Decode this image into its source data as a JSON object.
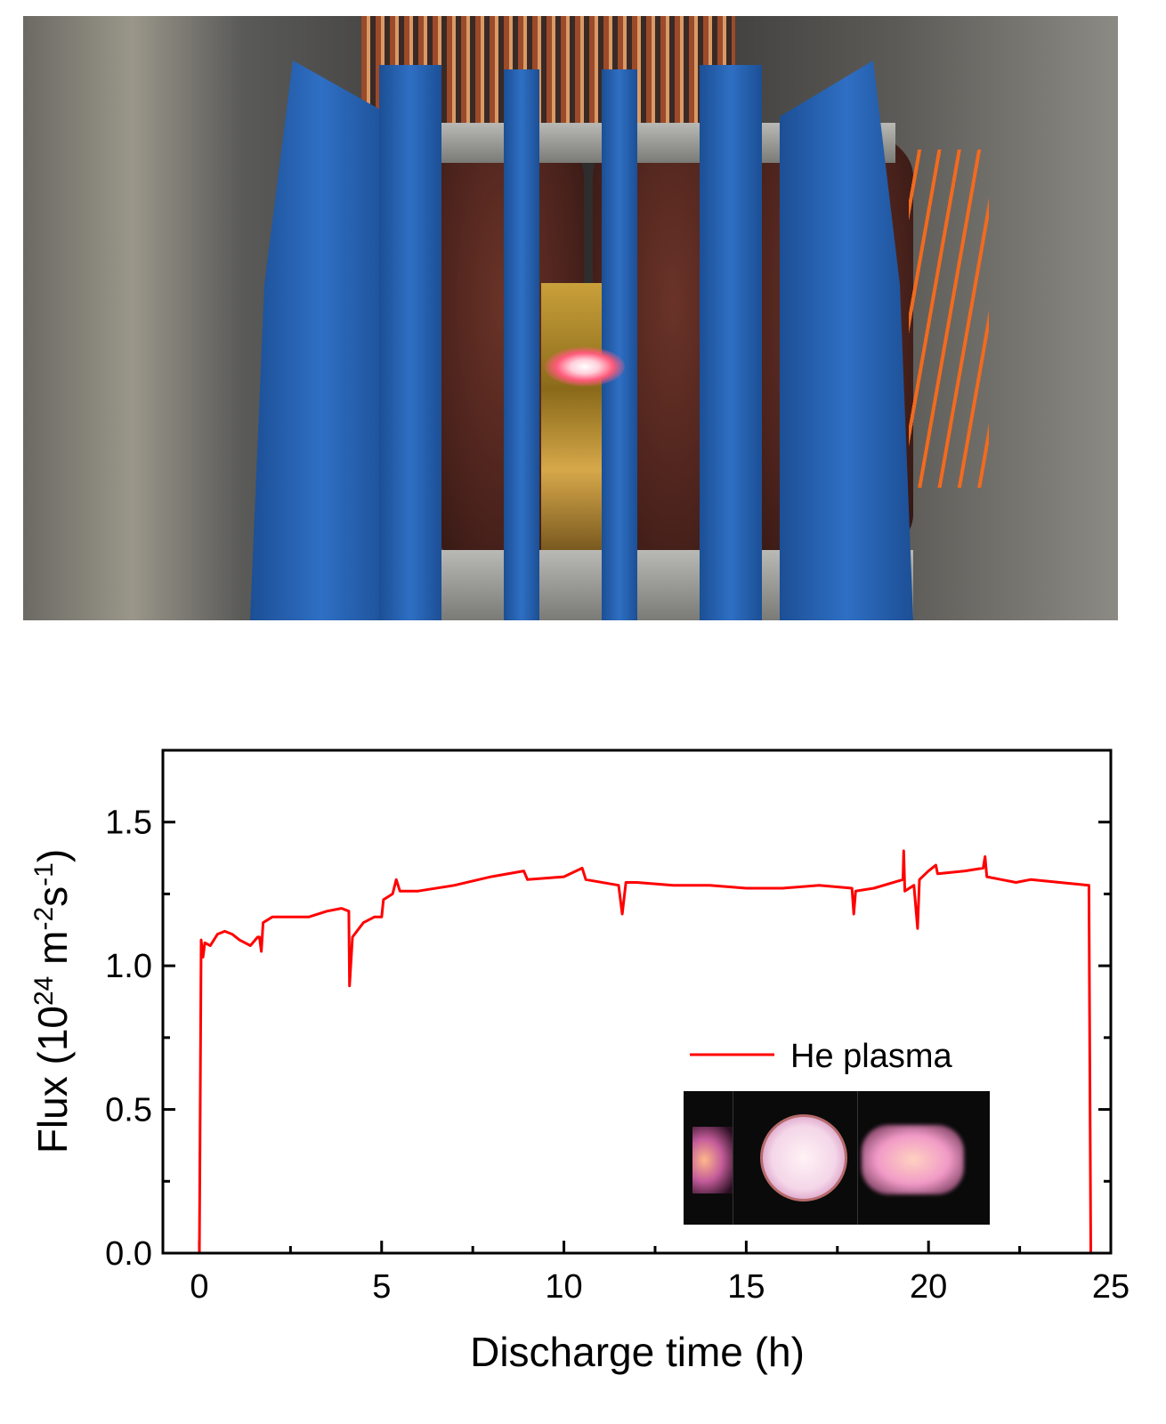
{
  "photo": {
    "subject": "linear plasma device with glowing He plasma in the central gap"
  },
  "chart_data": {
    "type": "line",
    "xlabel": "Discharge time (h)",
    "ylabel_parts": [
      "Flux (10",
      "24",
      " m",
      "-2",
      "s",
      "-1",
      ")"
    ],
    "xlim": [
      -1,
      25
    ],
    "ylim": [
      0,
      1.75
    ],
    "xticks": [
      0,
      5,
      10,
      15,
      20,
      25
    ],
    "xtick_labels": [
      "0",
      "5",
      "10",
      "15",
      "20",
      "25"
    ],
    "yticks": [
      0,
      0.5,
      1.0,
      1.5
    ],
    "ytick_labels": [
      "0.0",
      "0.5",
      "1.0",
      "1.5"
    ],
    "grid": false,
    "legend_placement": "bottom-right",
    "series": [
      {
        "name": "He plasma",
        "color": "#ff0000",
        "x": [
          0.0,
          0.05,
          0.1,
          0.15,
          0.3,
          0.5,
          0.7,
          0.9,
          1.1,
          1.4,
          1.6,
          1.65,
          1.7,
          1.75,
          2.0,
          2.5,
          3.0,
          3.5,
          3.9,
          4.1,
          4.12,
          4.2,
          4.5,
          4.8,
          5.0,
          5.05,
          5.3,
          5.4,
          5.5,
          6.0,
          7.0,
          8.0,
          8.9,
          9.0,
          10.0,
          10.5,
          10.6,
          11.5,
          11.6,
          11.7,
          12.0,
          13.0,
          14.0,
          15.0,
          16.0,
          17.0,
          17.9,
          17.95,
          18.0,
          18.5,
          19.3,
          19.32,
          19.35,
          19.6,
          19.7,
          19.75,
          20.0,
          20.2,
          20.25,
          21.0,
          21.5,
          21.55,
          21.6,
          22.0,
          22.4,
          22.8,
          24.4,
          24.45
        ],
        "y": [
          0.0,
          1.09,
          1.03,
          1.08,
          1.07,
          1.11,
          1.12,
          1.11,
          1.09,
          1.07,
          1.1,
          1.1,
          1.05,
          1.15,
          1.17,
          1.17,
          1.17,
          1.19,
          1.2,
          1.19,
          0.93,
          1.1,
          1.15,
          1.17,
          1.17,
          1.23,
          1.25,
          1.3,
          1.26,
          1.26,
          1.28,
          1.31,
          1.33,
          1.3,
          1.31,
          1.34,
          1.3,
          1.28,
          1.18,
          1.29,
          1.29,
          1.28,
          1.28,
          1.27,
          1.27,
          1.28,
          1.27,
          1.18,
          1.26,
          1.27,
          1.3,
          1.4,
          1.26,
          1.28,
          1.13,
          1.3,
          1.33,
          1.35,
          1.32,
          1.33,
          1.34,
          1.38,
          1.31,
          1.3,
          1.29,
          1.3,
          1.28,
          0.0
        ]
      }
    ]
  }
}
